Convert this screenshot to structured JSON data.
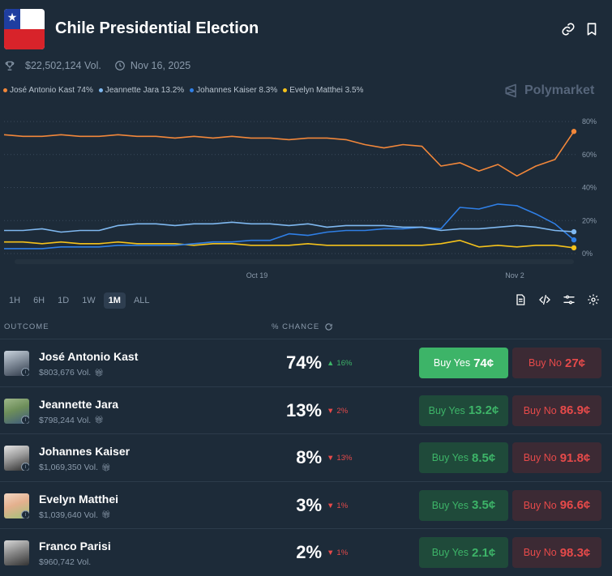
{
  "header": {
    "title": "Chile Presidential Election",
    "volume": "$22,502,124 Vol.",
    "date": "Nov 16, 2025",
    "brand": "Polymarket"
  },
  "legend": [
    {
      "label": "José Antonio Kast 74%",
      "color": "#f2873a"
    },
    {
      "label": "Jeannette Jara 13.2%",
      "color": "#7fb8f0"
    },
    {
      "label": "Johannes Kaiser 8.3%",
      "color": "#2f7fe6"
    },
    {
      "label": "Evelyn Matthei 3.5%",
      "color": "#f5c21b"
    }
  ],
  "ranges": {
    "h1": "1H",
    "h6": "6H",
    "d1": "1D",
    "w1": "1W",
    "m1": "1M",
    "all": "ALL",
    "active": "1M"
  },
  "columns": {
    "outcome": "OUTCOME",
    "chance": "% CHANCE"
  },
  "chart_data": {
    "type": "line",
    "x_tick_labels": [
      "Oct 19",
      "Nov 2"
    ],
    "y_tick_labels": [
      "80%",
      "60%",
      "40%",
      "20%",
      "0%"
    ],
    "ylim": [
      0,
      80
    ],
    "x": [
      0,
      1,
      2,
      3,
      4,
      5,
      6,
      7,
      8,
      9,
      10,
      11,
      12,
      13,
      14,
      15,
      16,
      17,
      18,
      19,
      20,
      21,
      22,
      23,
      24,
      25,
      26,
      27,
      28,
      29,
      30
    ],
    "series": [
      {
        "name": "José Antonio Kast",
        "color": "#f2873a",
        "values": [
          72,
          71,
          71,
          72,
          71,
          71,
          72,
          71,
          71,
          70,
          71,
          70,
          71,
          70,
          70,
          69,
          70,
          70,
          69,
          66,
          64,
          66,
          65,
          53,
          55,
          50,
          54,
          47,
          53,
          57,
          74
        ]
      },
      {
        "name": "Jeannette Jara",
        "color": "#7fb8f0",
        "values": [
          14,
          14,
          15,
          13,
          14,
          14,
          17,
          18,
          18,
          17,
          18,
          18,
          19,
          18,
          18,
          17,
          18,
          16,
          17,
          17,
          17,
          16,
          16,
          14,
          15,
          15,
          16,
          17,
          16,
          14,
          13.2
        ]
      },
      {
        "name": "Johannes Kaiser",
        "color": "#2f7fe6",
        "values": [
          3,
          3,
          3,
          4,
          4,
          4,
          5,
          5,
          5,
          5,
          6,
          7,
          7,
          8,
          8,
          12,
          11,
          13,
          14,
          14,
          15,
          15,
          16,
          15,
          28,
          27,
          30,
          29,
          24,
          18,
          8.3
        ]
      },
      {
        "name": "Evelyn Matthei",
        "color": "#f5c21b",
        "values": [
          7,
          7,
          6,
          7,
          6,
          6,
          7,
          6,
          6,
          6,
          5,
          6,
          6,
          5,
          5,
          5,
          6,
          5,
          5,
          5,
          5,
          5,
          5,
          6,
          8,
          4,
          5,
          4,
          5,
          5,
          3.5
        ]
      }
    ]
  },
  "candidates": [
    {
      "name": "José Antonio Kast",
      "volume": "$803,676 Vol.",
      "chance": "74%",
      "change": "16%",
      "direction": "up",
      "yes_label": "Buy Yes",
      "yes_price": "74¢",
      "no_label": "Buy No",
      "no_price": "27¢",
      "primary": true
    },
    {
      "name": "Jeannette Jara",
      "volume": "$798,244 Vol.",
      "chance": "13%",
      "change": "2%",
      "direction": "down",
      "yes_label": "Buy Yes",
      "yes_price": "13.2¢",
      "no_label": "Buy No",
      "no_price": "86.9¢",
      "primary": false
    },
    {
      "name": "Johannes Kaiser",
      "volume": "$1,069,350 Vol.",
      "chance": "8%",
      "change": "13%",
      "direction": "down",
      "yes_label": "Buy Yes",
      "yes_price": "8.5¢",
      "no_label": "Buy No",
      "no_price": "91.8¢",
      "primary": false
    },
    {
      "name": "Evelyn Matthei",
      "volume": "$1,039,640 Vol.",
      "chance": "3%",
      "change": "1%",
      "direction": "down",
      "yes_label": "Buy Yes",
      "yes_price": "3.5¢",
      "no_label": "Buy No",
      "no_price": "96.6¢",
      "primary": false
    },
    {
      "name": "Franco Parisi",
      "volume": "$960,742 Vol.",
      "chance": "2%",
      "change": "1%",
      "direction": "down",
      "yes_label": "Buy Yes",
      "yes_price": "2.1¢",
      "no_label": "Buy No",
      "no_price": "98.3¢",
      "primary": false
    }
  ]
}
